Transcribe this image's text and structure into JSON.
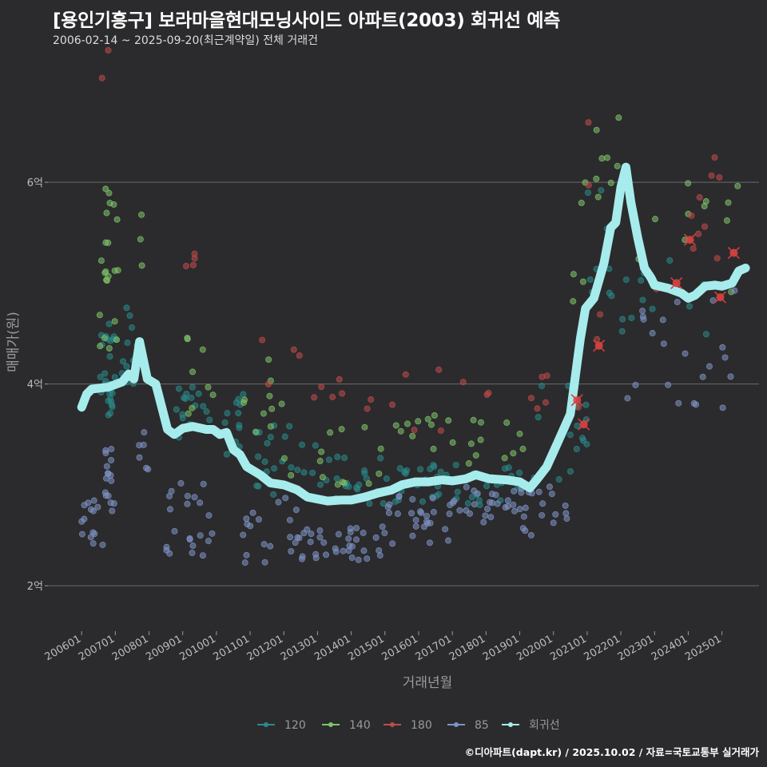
{
  "header": {
    "title": "[용인기흥구] 보라마을현대모닝사이드 아파트(2003) 회귀선 예측",
    "subtitle": "2006-02-14 ~ 2025-09-20(최근계약일) 전체 거래건"
  },
  "credit": "©디아파트(dapt.kr) / 2025.10.02 / 자료=국토교통부 실거래가",
  "chart_data": {
    "type": "scatter",
    "xlabel": "거래년월",
    "ylabel": "매매가(원)",
    "x_ticks": [
      "200601",
      "200701",
      "200801",
      "200901",
      "201001",
      "201101",
      "201201",
      "201301",
      "201401",
      "201501",
      "201601",
      "201701",
      "201801",
      "201901",
      "202001",
      "202101",
      "202201",
      "202301",
      "202401",
      "202501"
    ],
    "y_ticks": [
      {
        "value": 2,
        "label": "2억"
      },
      {
        "value": 4,
        "label": "4억"
      },
      {
        "value": 6,
        "label": "6억"
      }
    ],
    "ylim": [
      1.55,
      7.3
    ],
    "xlim": [
      2005.0,
      2026.1
    ],
    "grid": "horizontal",
    "legend_position": "bottom",
    "colors": {
      "120": "#2a8a8a",
      "140": "#7fc46a",
      "180": "#c24a4a",
      "85": "#7f93c4",
      "회귀선": "#a7ecec"
    },
    "series": [
      {
        "name": "120",
        "clusters": [
          [
            2006.5,
            2007.0,
            3.6,
            4.6,
            28
          ],
          [
            2007.0,
            2007.8,
            4.0,
            4.8,
            12
          ],
          [
            2008.8,
            2009.8,
            3.3,
            4.0,
            18
          ],
          [
            2010.0,
            2011.0,
            3.3,
            3.9,
            12
          ],
          [
            2011.0,
            2013.0,
            2.9,
            3.6,
            22
          ],
          [
            2013.0,
            2015.0,
            2.8,
            3.3,
            20
          ],
          [
            2015.0,
            2017.0,
            2.8,
            3.2,
            22
          ],
          [
            2017.0,
            2019.5,
            2.8,
            3.2,
            24
          ],
          [
            2019.5,
            2021.0,
            3.0,
            4.0,
            16
          ],
          [
            2021.0,
            2022.0,
            4.8,
            6.1,
            10
          ],
          [
            2022.0,
            2025.0,
            4.4,
            5.3,
            12
          ]
        ]
      },
      {
        "name": "140",
        "clusters": [
          [
            2006.5,
            2007.1,
            4.3,
            6.0,
            22
          ],
          [
            2007.5,
            2007.8,
            5.1,
            5.7,
            3
          ],
          [
            2009.0,
            2010.0,
            3.7,
            4.6,
            8
          ],
          [
            2010.5,
            2012.0,
            3.5,
            4.3,
            10
          ],
          [
            2012.0,
            2015.0,
            3.0,
            3.7,
            14
          ],
          [
            2015.0,
            2019.5,
            3.2,
            3.7,
            22
          ],
          [
            2020.5,
            2021.0,
            4.6,
            6.0,
            6
          ],
          [
            2021.0,
            2022.0,
            5.7,
            7.0,
            8
          ],
          [
            2022.5,
            2025.5,
            4.9,
            6.0,
            12
          ]
        ]
      },
      {
        "name": "180",
        "clusters": [
          [
            2006.5,
            2006.8,
            6.8,
            7.6,
            2
          ],
          [
            2009.0,
            2009.5,
            5.1,
            5.3,
            4
          ],
          [
            2010.5,
            2012.5,
            3.9,
            4.5,
            4
          ],
          [
            2012.5,
            2017.0,
            3.5,
            4.2,
            12
          ],
          [
            2017.0,
            2020.0,
            3.7,
            4.2,
            8
          ],
          [
            2020.5,
            2021.5,
            3.5,
            6.7,
            6
          ],
          [
            2022.5,
            2025.0,
            4.9,
            6.5,
            10
          ]
        ]
      },
      {
        "name": "85",
        "clusters": [
          [
            2006.0,
            2006.7,
            2.4,
            2.9,
            14
          ],
          [
            2006.7,
            2007.0,
            2.7,
            3.4,
            16
          ],
          [
            2007.7,
            2008.0,
            3.1,
            3.6,
            6
          ],
          [
            2008.5,
            2010.0,
            2.3,
            3.1,
            22
          ],
          [
            2010.5,
            2012.5,
            2.2,
            2.9,
            20
          ],
          [
            2012.5,
            2015.0,
            2.25,
            2.6,
            34
          ],
          [
            2015.0,
            2017.0,
            2.4,
            2.9,
            26
          ],
          [
            2017.0,
            2019.0,
            2.6,
            3.0,
            24
          ],
          [
            2019.0,
            2020.5,
            2.5,
            3.0,
            20
          ],
          [
            2021.5,
            2025.5,
            3.7,
            5.0,
            22
          ]
        ]
      },
      {
        "name": "회귀선",
        "points": [
          [
            2006.0,
            3.77
          ],
          [
            2006.15,
            3.9
          ],
          [
            2006.3,
            3.95
          ],
          [
            2006.8,
            3.97
          ],
          [
            2007.2,
            4.02
          ],
          [
            2007.4,
            4.1
          ],
          [
            2007.55,
            4.05
          ],
          [
            2007.72,
            4.42
          ],
          [
            2007.95,
            4.05
          ],
          [
            2008.2,
            4.0
          ],
          [
            2008.55,
            3.55
          ],
          [
            2008.75,
            3.5
          ],
          [
            2009.0,
            3.56
          ],
          [
            2009.3,
            3.58
          ],
          [
            2009.7,
            3.55
          ],
          [
            2009.9,
            3.55
          ],
          [
            2010.1,
            3.5
          ],
          [
            2010.3,
            3.52
          ],
          [
            2010.5,
            3.35
          ],
          [
            2010.7,
            3.3
          ],
          [
            2010.9,
            3.18
          ],
          [
            2011.3,
            3.1
          ],
          [
            2011.6,
            3.02
          ],
          [
            2012.0,
            3.0
          ],
          [
            2012.4,
            2.95
          ],
          [
            2012.7,
            2.88
          ],
          [
            2013.0,
            2.86
          ],
          [
            2013.3,
            2.84
          ],
          [
            2013.7,
            2.85
          ],
          [
            2014.0,
            2.85
          ],
          [
            2014.4,
            2.88
          ],
          [
            2014.8,
            2.92
          ],
          [
            2015.2,
            2.95
          ],
          [
            2015.5,
            3.0
          ],
          [
            2015.9,
            3.03
          ],
          [
            2016.3,
            3.03
          ],
          [
            2016.7,
            3.05
          ],
          [
            2017.0,
            3.04
          ],
          [
            2017.4,
            3.06
          ],
          [
            2017.7,
            3.1
          ],
          [
            2018.1,
            3.06
          ],
          [
            2018.6,
            3.05
          ],
          [
            2019.0,
            3.03
          ],
          [
            2019.3,
            2.97
          ],
          [
            2019.5,
            3.05
          ],
          [
            2019.8,
            3.18
          ],
          [
            2020.1,
            3.4
          ],
          [
            2020.5,
            3.7
          ],
          [
            2020.8,
            4.45
          ],
          [
            2020.95,
            4.75
          ],
          [
            2021.2,
            4.85
          ],
          [
            2021.5,
            5.2
          ],
          [
            2021.7,
            5.55
          ],
          [
            2021.85,
            5.6
          ],
          [
            2022.0,
            5.95
          ],
          [
            2022.15,
            6.15
          ],
          [
            2022.3,
            5.8
          ],
          [
            2022.5,
            5.45
          ],
          [
            2022.7,
            5.15
          ],
          [
            2022.9,
            5.05
          ],
          [
            2023.0,
            4.98
          ],
          [
            2023.4,
            4.95
          ],
          [
            2023.8,
            4.9
          ],
          [
            2024.0,
            4.85
          ],
          [
            2024.2,
            4.88
          ],
          [
            2024.5,
            4.97
          ],
          [
            2024.8,
            4.98
          ],
          [
            2025.0,
            4.97
          ],
          [
            2025.3,
            5.0
          ],
          [
            2025.5,
            5.12
          ],
          [
            2025.7,
            5.15
          ]
        ]
      }
    ],
    "highlighted_trades": [
      [
        2020.7,
        3.84
      ],
      [
        2020.9,
        3.6
      ],
      [
        2021.35,
        4.38
      ],
      [
        2023.65,
        5.0
      ],
      [
        2024.05,
        5.43
      ],
      [
        2024.95,
        4.86
      ],
      [
        2025.35,
        5.3
      ]
    ]
  }
}
